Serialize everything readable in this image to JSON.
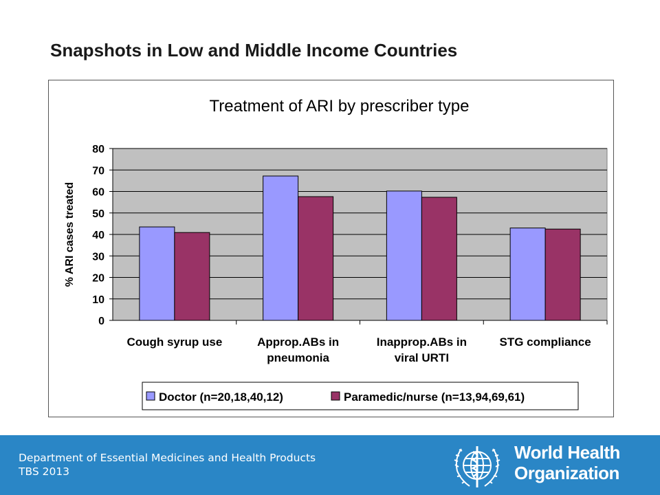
{
  "slide": {
    "title": "Snapshots in Low and Middle Income Countries"
  },
  "footer": {
    "department": "Department of Essential Medicines and Health Products",
    "tbs": "TBS 2013",
    "who_line1": "World Health",
    "who_line2": "Organization",
    "background_color": "#2a86c6"
  },
  "chart_data": {
    "type": "bar",
    "title": "Treatment of ARI by prescriber type",
    "ylabel": "% ARI cases treated",
    "xlabel": "",
    "ylim": [
      0,
      80
    ],
    "yticks": [
      0,
      10,
      20,
      30,
      40,
      50,
      60,
      70,
      80
    ],
    "grid": true,
    "legend_position": "bottom",
    "categories": [
      [
        "Cough syrup use"
      ],
      [
        "Approp.ABs in",
        "pneumonia"
      ],
      [
        "Inapprop.ABs in",
        "viral URTI"
      ],
      [
        "STG compliance"
      ]
    ],
    "series": [
      {
        "name": "Doctor (n=20,18,40,12)",
        "color": "#9999ff",
        "values": [
          43.5,
          67.2,
          60.2,
          43.0
        ]
      },
      {
        "name": "Paramedic/nurse (n=13,94,69,61)",
        "color": "#993366",
        "values": [
          40.9,
          57.6,
          57.3,
          42.5
        ]
      }
    ],
    "plot_background": "#c0c0c0"
  }
}
